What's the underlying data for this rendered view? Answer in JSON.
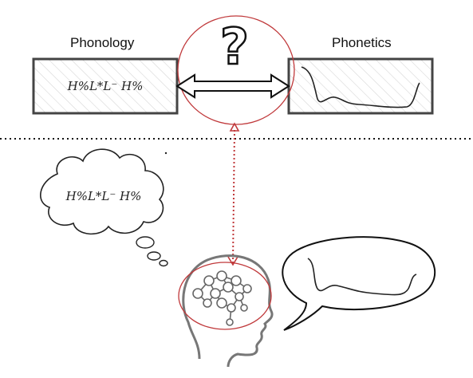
{
  "labels": {
    "phonology": "Phonology",
    "phonetics": "Phonetics",
    "question": "?"
  },
  "phonology_box": {
    "text": "H%L*L⁻ H%"
  },
  "thought_bubble": {
    "text": "H%L*L⁻ H%"
  },
  "colors": {
    "ink": "#333333",
    "accent": "#c0393b",
    "hatch": "#d0d0d0"
  }
}
